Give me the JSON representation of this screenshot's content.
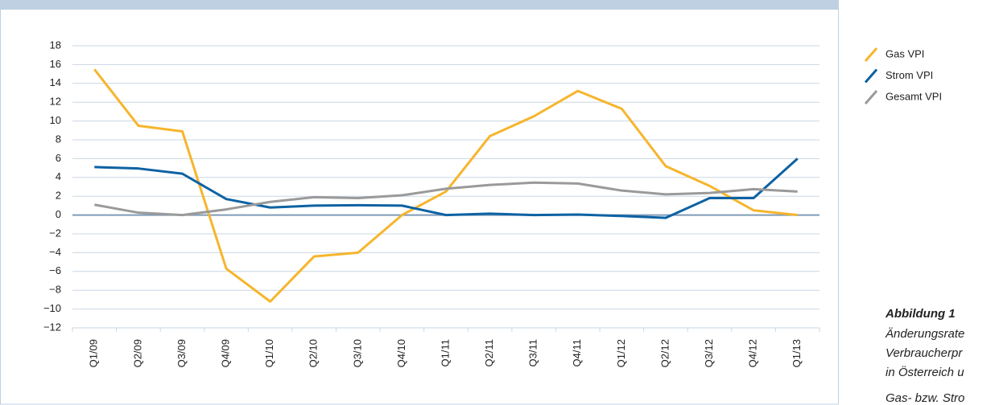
{
  "chart_data": {
    "type": "line",
    "categories": [
      "Q1/09",
      "Q2/09",
      "Q3/09",
      "Q4/09",
      "Q1/10",
      "Q2/10",
      "Q3/10",
      "Q4/10",
      "Q1/11",
      "Q2/11",
      "Q3/11",
      "Q4/11",
      "Q1/12",
      "Q2/12",
      "Q3/12",
      "Q4/12",
      "Q1/13"
    ],
    "series": [
      {
        "name": "Gas VPI",
        "color": "#f6b52c",
        "values": [
          15.5,
          9.5,
          8.9,
          -5.7,
          -9.2,
          -4.4,
          -4.0,
          0,
          2.5,
          8.4,
          10.5,
          13.2,
          11.3,
          5.2,
          3.1,
          0.5,
          0.0
        ]
      },
      {
        "name": "Strom VPI",
        "color": "#0d62a3",
        "values": [
          5.1,
          4.95,
          4.4,
          1.7,
          0.8,
          1.0,
          1.05,
          1.0,
          0.0,
          0.15,
          0.0,
          0.05,
          -0.1,
          -0.3,
          1.8,
          1.8,
          6.0
        ]
      },
      {
        "name": "Gesamt VPI",
        "color": "#9a9a9a",
        "values": [
          1.1,
          0.25,
          0.0,
          0.6,
          1.4,
          1.9,
          1.8,
          2.1,
          2.8,
          3.2,
          3.45,
          3.35,
          2.6,
          2.2,
          2.35,
          2.75,
          2.5
        ]
      }
    ],
    "ylim": [
      -12,
      18
    ],
    "yticks": [
      {
        "value": -12,
        "label": "−12"
      },
      {
        "value": -10,
        "label": "−10"
      },
      {
        "value": -8,
        "label": "−8"
      },
      {
        "value": -6,
        "label": "−6"
      },
      {
        "value": -4,
        "label": "−4"
      },
      {
        "value": -2,
        "label": "−2"
      },
      0,
      2,
      4,
      6,
      8,
      10,
      12,
      14,
      16,
      18
    ],
    "grid": true,
    "legend": "right"
  },
  "caption": {
    "title": "Abbildung 1",
    "lines": [
      "Änderungsrate",
      "Verbraucherpr",
      "in Österreich u",
      "Gas- bzw. Stro"
    ]
  }
}
